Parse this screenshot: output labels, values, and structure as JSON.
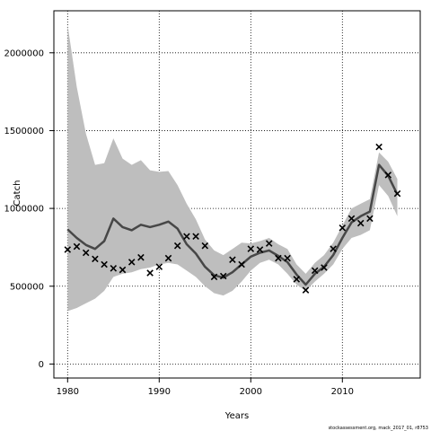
{
  "chart_data": {
    "type": "line",
    "title": "",
    "xlabel": "Years",
    "ylabel": "Catch",
    "xlim": [
      1978.5,
      2018.5
    ],
    "ylim": [
      -90000,
      2270000
    ],
    "xticks": [
      1980,
      1990,
      2000,
      2010
    ],
    "yticks": [
      0,
      500000,
      1000000,
      1500000,
      2000000
    ],
    "xtick_labels": [
      "1980",
      "1990",
      "2000",
      "2010"
    ],
    "ytick_labels": [
      "0",
      "500000",
      "1000000",
      "1500000",
      "2000000"
    ],
    "grid": true,
    "x": [
      1980,
      1981,
      1982,
      1983,
      1984,
      1985,
      1986,
      1987,
      1988,
      1989,
      1990,
      1991,
      1992,
      1993,
      1994,
      1995,
      1996,
      1997,
      1998,
      1999,
      2000,
      2001,
      2002,
      2003,
      2004,
      2005,
      2006,
      2007,
      2008,
      2009,
      2010,
      2011,
      2012,
      2013,
      2014,
      2015,
      2016
    ],
    "series": [
      {
        "type": "band",
        "color": "#bebebe",
        "upper": [
          2180000,
          1780000,
          1480000,
          1280000,
          1290000,
          1450000,
          1320000,
          1280000,
          1310000,
          1245000,
          1235000,
          1240000,
          1150000,
          1030000,
          930000,
          800000,
          730000,
          700000,
          740000,
          780000,
          775000,
          790000,
          810000,
          770000,
          740000,
          640000,
          580000,
          650000,
          700000,
          780000,
          890000,
          1000000,
          1030000,
          1060000,
          1360000,
          1300000,
          1190000
        ],
        "lower": [
          340000,
          360000,
          390000,
          420000,
          470000,
          560000,
          580000,
          590000,
          610000,
          620000,
          640000,
          650000,
          640000,
          600000,
          560000,
          500000,
          455000,
          440000,
          470000,
          530000,
          600000,
          650000,
          670000,
          640000,
          580000,
          510000,
          470000,
          530000,
          580000,
          640000,
          740000,
          810000,
          830000,
          860000,
          1150000,
          1080000,
          950000
        ]
      },
      {
        "type": "line",
        "color": "#474747",
        "values": [
          865000,
          810000,
          765000,
          740000,
          790000,
          935000,
          880000,
          860000,
          895000,
          880000,
          895000,
          915000,
          870000,
          770000,
          710000,
          625000,
          570000,
          555000,
          590000,
          640000,
          690000,
          715000,
          730000,
          695000,
          655000,
          575000,
          510000,
          580000,
          625000,
          700000,
          810000,
          910000,
          950000,
          980000,
          1280000,
          1210000,
          1090000
        ]
      },
      {
        "type": "scatter",
        "marker": "x",
        "color": "#000000",
        "values": [
          735000,
          755000,
          715000,
          675000,
          640000,
          615000,
          605000,
          655000,
          685000,
          585000,
          625000,
          680000,
          760000,
          820000,
          820000,
          760000,
          560000,
          565000,
          670000,
          640000,
          740000,
          735000,
          775000,
          680000,
          680000,
          545000,
          475000,
          600000,
          620000,
          740000,
          875000,
          935000,
          905000,
          935000,
          1395000,
          1215000,
          1095000
        ]
      }
    ]
  },
  "credit": "stockassessment.org, mack_2017_01, r8753"
}
